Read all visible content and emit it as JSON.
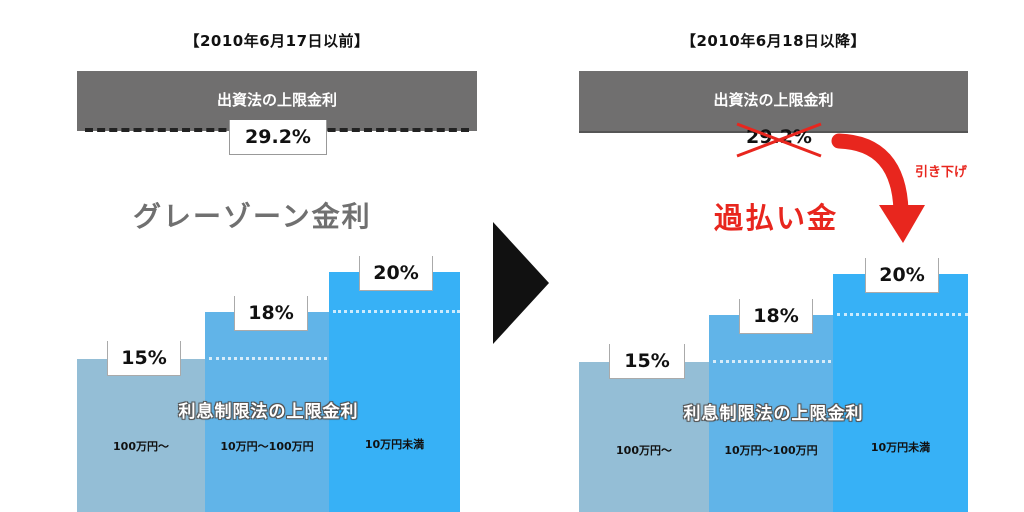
{
  "before": {
    "title": "【2010年6月17日以前】",
    "header": "出資法の上限金利",
    "cap_rate": "29.2%",
    "zone_label": "グレーゾーン金利",
    "law_label": "利息制限法の上限金利",
    "bars": [
      {
        "rate": "15%",
        "category": "100万円〜"
      },
      {
        "rate": "18%",
        "category": "10万円〜100万円"
      },
      {
        "rate": "20%",
        "category": "10万円未満"
      }
    ]
  },
  "after": {
    "title": "【2010年6月18日以降】",
    "header": "出資法の上限金利",
    "cap_rate": "29.2%",
    "zone_label": "過払い金",
    "arrow_label": "引き下げ",
    "law_label": "利息制限法の上限金利",
    "bars": [
      {
        "rate": "15%",
        "category": "100万円〜"
      },
      {
        "rate": "18%",
        "category": "10万円〜100万円"
      },
      {
        "rate": "20%",
        "category": "10万円未満"
      }
    ]
  },
  "colors": {
    "header": "#706f6f",
    "bar_low": "#94bed6",
    "bar_mid": "#61b4e8",
    "bar_high": "#37b1f6",
    "accent_red": "#e8261e",
    "gray_text": "#707070"
  }
}
